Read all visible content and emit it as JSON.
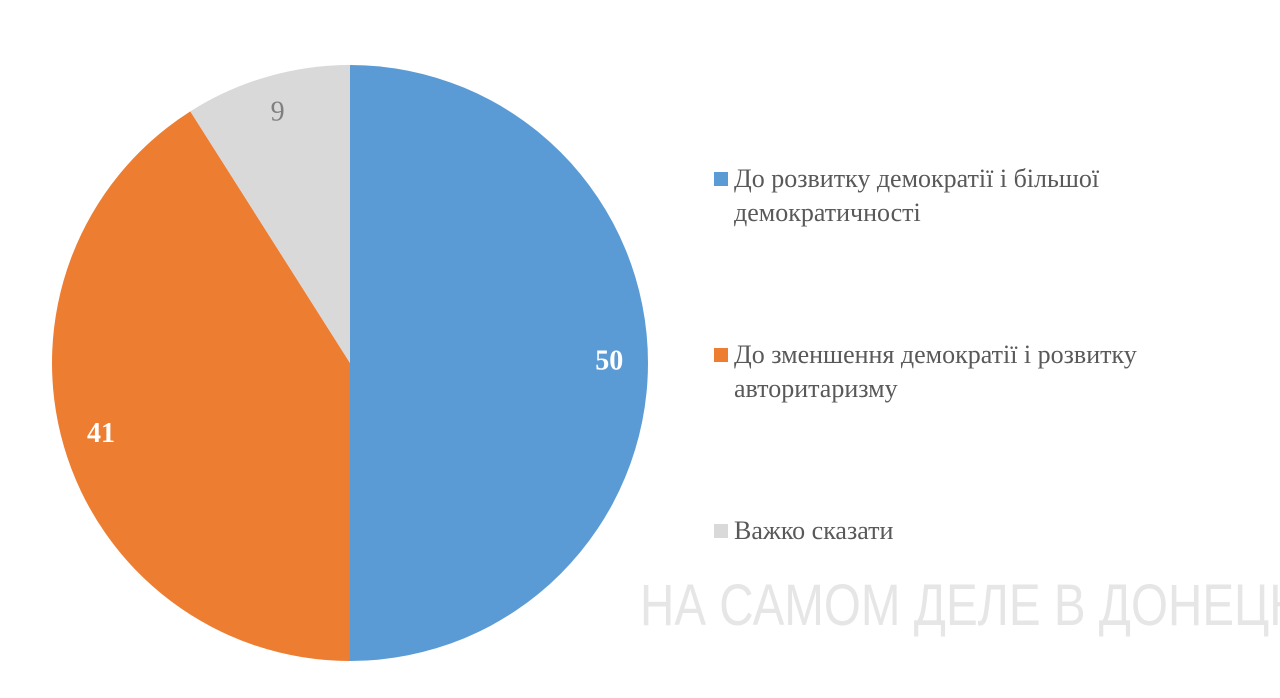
{
  "chart_data": {
    "type": "pie",
    "categories": [
      "До розвитку демократії і більшої демократичності",
      "До зменшення демократії і розвитку авторитаризму",
      "Важко сказати"
    ],
    "values": [
      50,
      41,
      9
    ],
    "colors": [
      "#5b9bd5",
      "#ed7d31",
      "#d9d9d9"
    ],
    "label_colors": [
      "#ffffff",
      "#ffffff",
      "#7f7f7f"
    ],
    "watermark": "НА САМОМ ДЕЛЕ В ДОНЕЦКЕ"
  }
}
